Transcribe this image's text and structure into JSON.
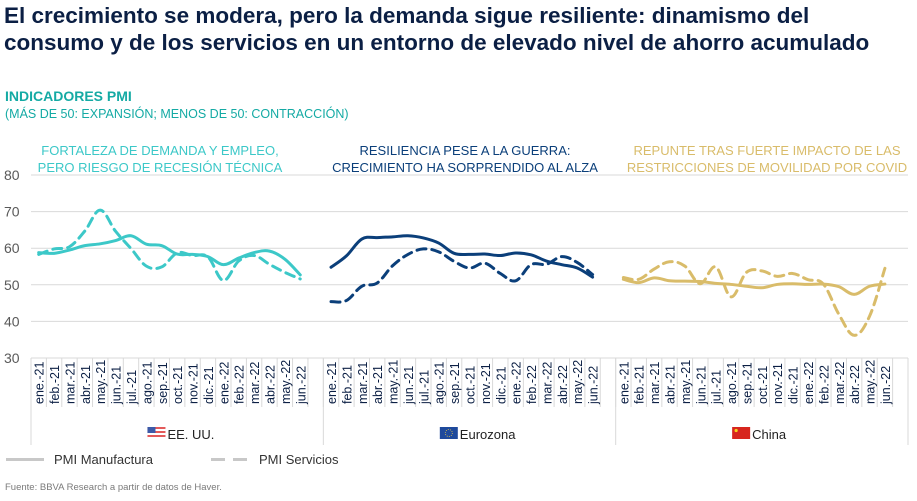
{
  "title": "El crecimiento se modera, pero la demanda sigue resiliente: dinamismo del consumo y de los servicios en un entorno de elevado nivel de ahorro acumulado",
  "subtitle": "INDICADORES PMI",
  "subnote": "(MÁS DE 50: EXPANSIÓN; MENOS DE 50: CONTRACCIÓN)",
  "source": "Fuente: BBVA Research a partir de datos de Haver.",
  "legend": {
    "manufactura": "PMI Manufactura",
    "servicios": "PMI Servicios"
  },
  "chart_data": {
    "type": "line",
    "title": "INDICADORES PMI",
    "subtitle": "(MÁS DE 50: EXPANSIÓN; MENOS DE 50: CONTRACCIÓN)",
    "xlabel": "",
    "ylabel": "",
    "ylim": [
      30,
      80
    ],
    "yticks": [
      30,
      40,
      50,
      60,
      70,
      80
    ],
    "grid": true,
    "legend_position": "bottom-left",
    "categories": [
      "ene.-21",
      "feb.-21",
      "mar.-21",
      "abr.-21",
      "may.-21",
      "jun.-21",
      "jul.-21",
      "ago.-21",
      "sep.-21",
      "oct.-21",
      "nov.-21",
      "dic.-21",
      "ene.-22",
      "feb.-22",
      "mar.-22",
      "abr.-22",
      "may.-22",
      "jun.-22"
    ],
    "panels": [
      {
        "region": "EE. UU.",
        "flag": "us-flag-icon",
        "annotation": [
          "FORTALEZA DE DEMANDA Y EMPLEO,",
          "PERO RIESGO DE RECESIÓN TÉCNICA"
        ],
        "color": "#3cc8c8",
        "series": [
          {
            "name": "PMI Manufactura",
            "style": "solid",
            "values": [
              58.8,
              58.6,
              59.5,
              60.7,
              61.2,
              62.1,
              63.4,
              61.1,
              60.7,
              58.4,
              58.3,
              57.7,
              55.5,
              57.3,
              58.8,
              59.2,
              57.0,
              52.7
            ]
          },
          {
            "name": "PMI Servicios",
            "style": "dashed",
            "values": [
              58.3,
              59.8,
              60.4,
              64.7,
              70.4,
              64.6,
              59.9,
              55.1,
              54.9,
              58.7,
              58.0,
              57.6,
              51.2,
              56.5,
              58.0,
              55.6,
              53.4,
              51.6
            ]
          }
        ]
      },
      {
        "region": "Eurozona",
        "flag": "eu-flag-icon",
        "annotation": [
          "RESILIENCIA PESE A LA GUERRA:",
          "CRECIMIENTO HA SORPRENDIDO AL ALZA"
        ],
        "color": "#0b3f7a",
        "series": [
          {
            "name": "PMI Manufactura",
            "style": "solid",
            "values": [
              54.8,
              57.9,
              62.5,
              62.9,
              63.1,
              63.4,
              62.8,
              61.4,
              58.6,
              58.3,
              58.4,
              58.0,
              58.7,
              58.2,
              56.5,
              55.5,
              54.6,
              52.1
            ]
          },
          {
            "name": "PMI Servicios",
            "style": "dashed",
            "values": [
              45.4,
              45.7,
              49.6,
              50.5,
              55.2,
              58.3,
              59.8,
              59.0,
              56.4,
              54.6,
              55.9,
              53.1,
              51.1,
              55.5,
              55.6,
              57.7,
              56.1,
              52.8
            ]
          }
        ]
      },
      {
        "region": "China",
        "flag": "china-flag-icon",
        "annotation": [
          "REPUNTE TRAS FUERTE IMPACTO DE LAS",
          "RESTRICCIONES DE MOVILIDAD POR COVID"
        ],
        "color": "#d9bc6a",
        "series": [
          {
            "name": "PMI Manufactura",
            "style": "solid",
            "values": [
              51.5,
              50.6,
              51.9,
              51.1,
              51.0,
              50.9,
              50.4,
              50.1,
              49.6,
              49.2,
              50.1,
              50.3,
              50.1,
              50.2,
              49.5,
              47.4,
              49.6,
              50.2
            ]
          },
          {
            "name": "PMI Servicios",
            "style": "dashed",
            "values": [
              52.0,
              51.5,
              54.3,
              56.3,
              55.1,
              50.3,
              54.9,
              46.7,
              53.4,
              53.8,
              52.3,
              53.1,
              51.4,
              50.2,
              42.0,
              36.2,
              41.4,
              54.5
            ]
          }
        ]
      }
    ]
  }
}
